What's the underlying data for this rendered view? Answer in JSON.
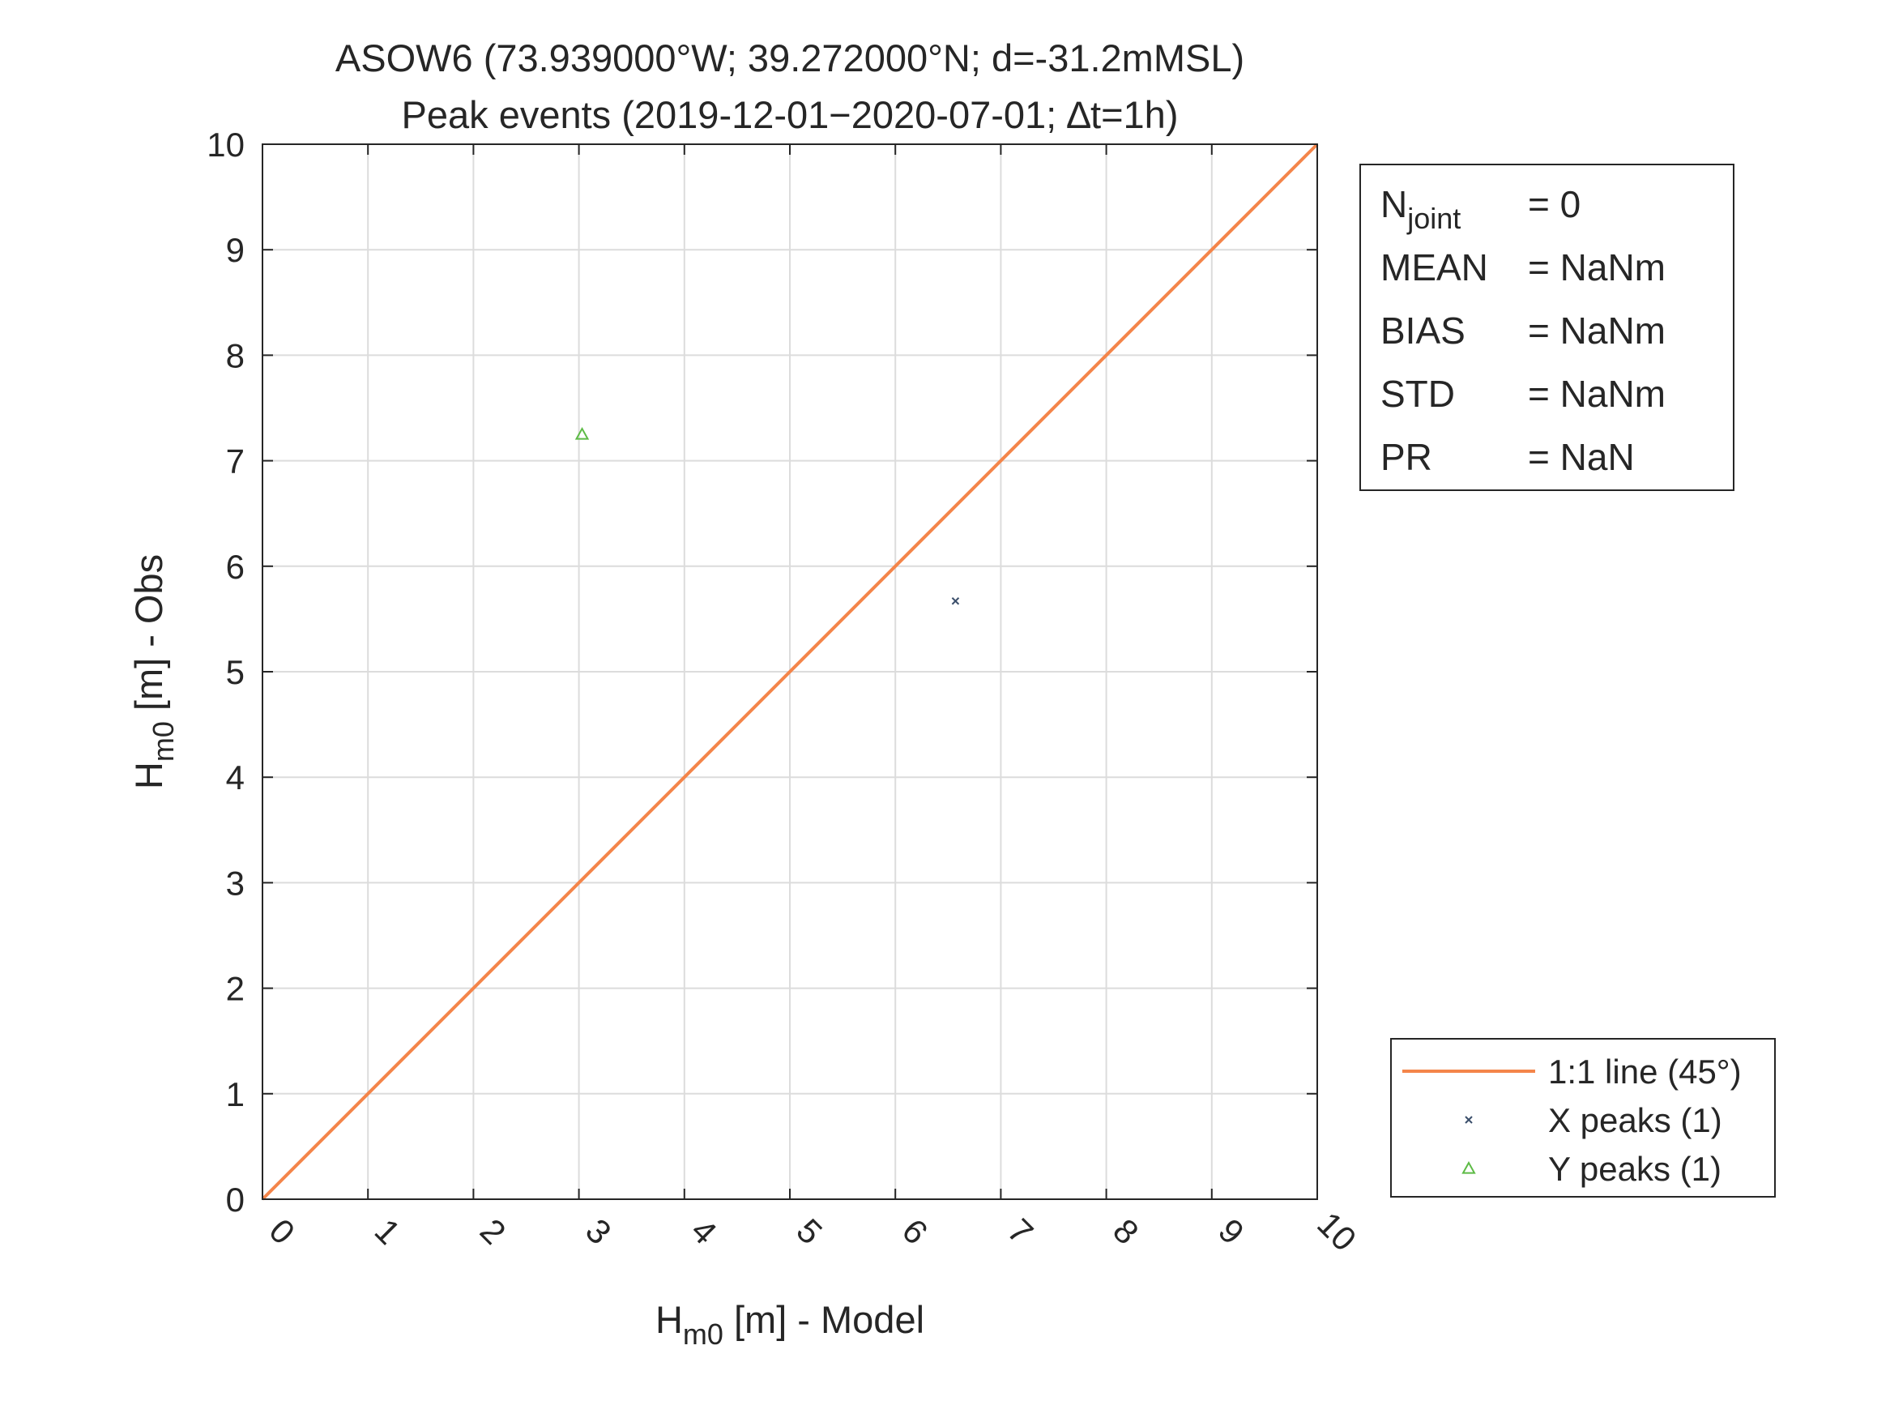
{
  "chart_data": {
    "type": "scatter",
    "title_line1": "ASOW6 (73.939000°W; 39.272000°N; d=-31.2mMSL)",
    "title_line2": "Peak events  (2019-12-01−2020-07-01; ∆t=1h)",
    "xlabel": {
      "main": "H",
      "sub": "m0",
      "rest": " [m] - Model"
    },
    "ylabel": {
      "main": "H",
      "sub": "m0",
      "rest": " [m] - Obs"
    },
    "xlim": [
      0,
      10
    ],
    "ylim": [
      0,
      10
    ],
    "xticks": [
      0,
      1,
      2,
      3,
      4,
      5,
      6,
      7,
      8,
      9,
      10
    ],
    "yticks": [
      0,
      1,
      2,
      3,
      4,
      5,
      6,
      7,
      8,
      9,
      10
    ],
    "grid": true,
    "series": [
      {
        "name": "1:1 line (45°)",
        "kind": "line",
        "color": "#f4854a",
        "x": [
          0,
          10
        ],
        "y": [
          0,
          10
        ]
      },
      {
        "name": "X peaks (1)",
        "kind": "marker-x",
        "color": "#3b4f6b",
        "x": [
          6.57
        ],
        "y": [
          5.67
        ]
      },
      {
        "name": "Y peaks (1)",
        "kind": "marker-triangle",
        "color": "#5dbb46",
        "x": [
          3.03
        ],
        "y": [
          7.25
        ]
      }
    ],
    "stats": [
      {
        "label": "N",
        "sub": "joint",
        "value": "= 0"
      },
      {
        "label": "MEAN",
        "sub": "",
        "value": "= NaNm"
      },
      {
        "label": "BIAS",
        "sub": "",
        "value": "= NaNm"
      },
      {
        "label": "STD",
        "sub": "",
        "value": "= NaNm"
      },
      {
        "label": "PR",
        "sub": "",
        "value": "= NaN"
      }
    ],
    "legend_position": "bottom-right, outside plot area"
  }
}
